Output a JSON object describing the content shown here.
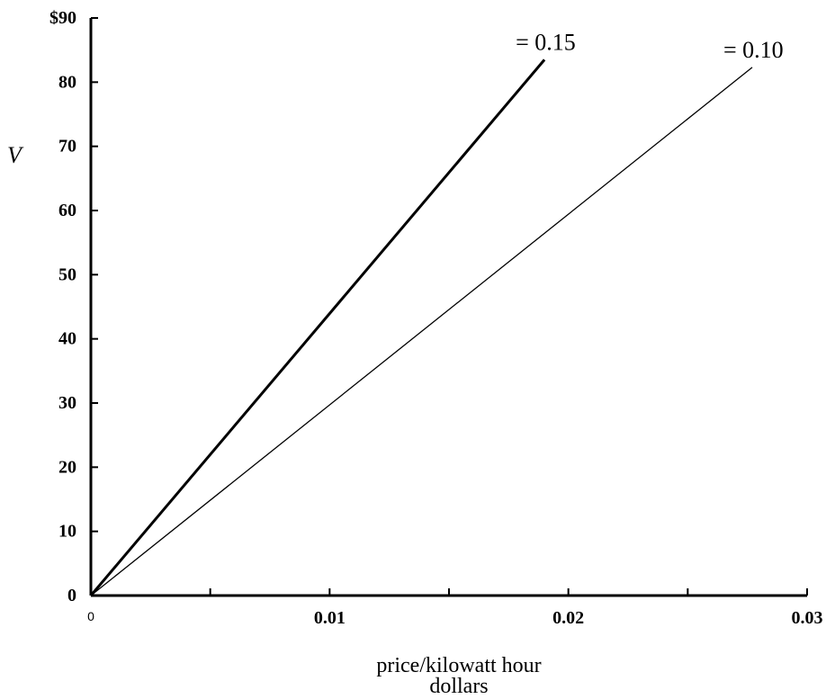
{
  "chart_data": {
    "type": "line",
    "xlabel_lines": [
      "price/kilowatt hour",
      "dollars"
    ],
    "ylabel": "V",
    "xlim": [
      0,
      0.03
    ],
    "ylim": [
      0,
      90
    ],
    "x_ticks": [
      {
        "value": 0,
        "label": "0"
      },
      {
        "value": 0.01,
        "label": "0.01"
      },
      {
        "value": 0.02,
        "label": "0.02"
      },
      {
        "value": 0.03,
        "label": "0.03"
      }
    ],
    "x_minor_ticks": [
      0.005,
      0.015,
      0.025
    ],
    "y_ticks": [
      {
        "value": 0,
        "label": "0"
      },
      {
        "value": 10,
        "label": "10"
      },
      {
        "value": 20,
        "label": "20"
      },
      {
        "value": 30,
        "label": "30"
      },
      {
        "value": 40,
        "label": "40"
      },
      {
        "value": 50,
        "label": "50"
      },
      {
        "value": 60,
        "label": "60"
      },
      {
        "value": 70,
        "label": "70"
      },
      {
        "value": 80,
        "label": "80"
      },
      {
        "value": 90,
        "label": "$90"
      }
    ],
    "grid": false,
    "series": [
      {
        "label": "= 0.15",
        "x": [
          0,
          0.019
        ],
        "y": [
          0,
          83.5
        ],
        "line_weight": "heavy"
      },
      {
        "label": "= 0.10",
        "x": [
          0,
          0.0277
        ],
        "y": [
          0,
          82.3
        ],
        "line_weight": "light"
      }
    ]
  }
}
